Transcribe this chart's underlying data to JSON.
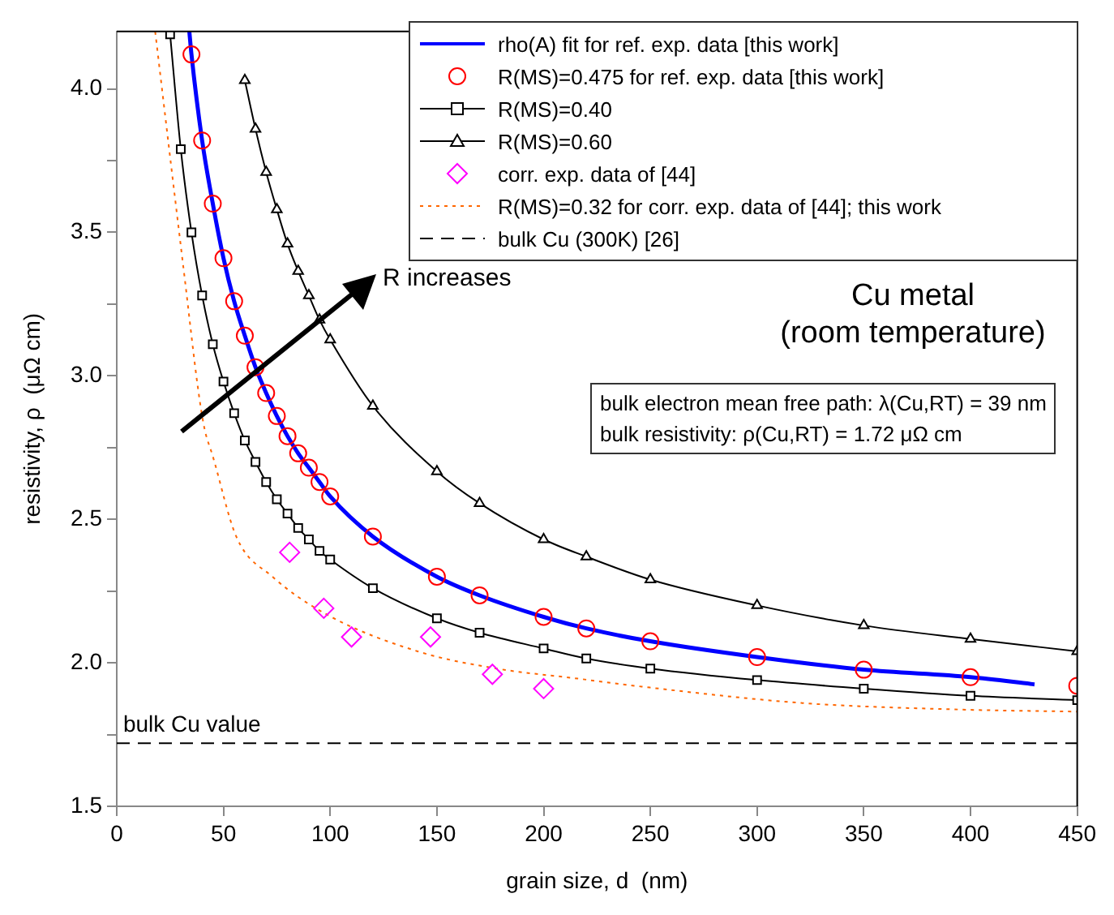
{
  "chart_data": {
    "type": "line",
    "xlabel": "grain size, d  (nm)",
    "ylabel": "resistivity, ρ  (μΩ cm)",
    "xlim": [
      0,
      450
    ],
    "xticks": [
      0,
      50,
      100,
      150,
      200,
      250,
      300,
      350,
      400,
      450
    ],
    "ylim": [
      1.5,
      4.2
    ],
    "yticks": [
      {
        "value": 1.5,
        "label": "1.5"
      },
      {
        "value": 1.75,
        "label": null
      },
      {
        "value": 2,
        "label": "2.0"
      },
      {
        "value": 2.25,
        "label": null
      },
      {
        "value": 2.5,
        "label": "2.5"
      },
      {
        "value": 2.75,
        "label": null
      },
      {
        "value": 3,
        "label": "3.0"
      },
      {
        "value": 3.25,
        "label": null
      },
      {
        "value": 3.5,
        "label": "3.5"
      },
      {
        "value": 3.75,
        "label": null
      },
      {
        "value": 4,
        "label": "4.0"
      }
    ],
    "grid": false,
    "legend": "top right",
    "series": [
      {
        "name": "rho(A) fit for ref. exp. data [this work]",
        "type": "line",
        "color": "#0000ff",
        "marker": "none",
        "line_style": "solid",
        "x": [
          34,
          35,
          40,
          45,
          50,
          55,
          60,
          65,
          70,
          75,
          80,
          85,
          90,
          95,
          100,
          120,
          150,
          170,
          200,
          220,
          250,
          300,
          350,
          400,
          430
        ],
        "values": [
          4.2,
          4.12,
          3.82,
          3.6,
          3.41,
          3.26,
          3.14,
          3.03,
          2.94,
          2.86,
          2.79,
          2.73,
          2.68,
          2.63,
          2.58,
          2.44,
          2.3,
          2.235,
          2.16,
          2.12,
          2.075,
          2.02,
          1.976,
          1.95,
          1.925
        ]
      },
      {
        "name": "R(MS)=0.475 for ref. exp. data [this work]",
        "type": "scatter",
        "color": "#ff0000",
        "marker": "circle",
        "x": [
          35,
          40,
          45,
          50,
          55,
          60,
          65,
          70,
          75,
          80,
          85,
          90,
          95,
          100,
          120,
          150,
          170,
          200,
          220,
          250,
          300,
          350,
          400,
          450
        ],
        "values": [
          4.12,
          3.82,
          3.6,
          3.41,
          3.26,
          3.14,
          3.03,
          2.94,
          2.86,
          2.79,
          2.73,
          2.68,
          2.63,
          2.58,
          2.44,
          2.3,
          2.235,
          2.16,
          2.12,
          2.075,
          2.02,
          1.976,
          1.95,
          1.92
        ]
      },
      {
        "name": "R(MS)=0.40",
        "type": "line",
        "color": "#000000",
        "marker": "square",
        "line_style": "solid",
        "x": [
          25,
          30,
          35,
          40,
          45,
          50,
          55,
          60,
          65,
          70,
          75,
          80,
          85,
          90,
          95,
          100,
          120,
          150,
          170,
          200,
          220,
          250,
          300,
          350,
          400,
          450
        ],
        "values": [
          4.19,
          3.79,
          3.5,
          3.28,
          3.11,
          2.98,
          2.87,
          2.775,
          2.7,
          2.63,
          2.57,
          2.52,
          2.47,
          2.43,
          2.39,
          2.36,
          2.26,
          2.155,
          2.105,
          2.05,
          2.015,
          1.98,
          1.94,
          1.91,
          1.885,
          1.87
        ]
      },
      {
        "name": "R(MS)=0.60",
        "type": "line",
        "color": "#000000",
        "marker": "triangle",
        "line_style": "solid",
        "x": [
          60,
          65,
          70,
          75,
          80,
          85,
          90,
          95,
          100,
          120,
          150,
          170,
          200,
          220,
          250,
          300,
          350,
          400,
          450
        ],
        "values": [
          4.03,
          3.86,
          3.71,
          3.58,
          3.46,
          3.365,
          3.28,
          3.195,
          3.126,
          2.895,
          2.667,
          2.556,
          2.43,
          2.37,
          2.29,
          2.2,
          2.13,
          2.083,
          2.04
        ]
      },
      {
        "name": "corr. exp. data of [44]",
        "type": "scatter",
        "color": "#ff00ff",
        "marker": "diamond",
        "x": [
          81,
          97,
          110,
          147,
          176,
          200
        ],
        "values": [
          2.385,
          2.19,
          2.09,
          2.09,
          1.96,
          1.91
        ]
      },
      {
        "name": "R(MS)=0.32 for corr. exp. data of [44]; this work",
        "type": "line",
        "color": "#ff6600",
        "marker": "none",
        "line_style": "dotted",
        "x": [
          18,
          26,
          32,
          38,
          41,
          45,
          56,
          73,
          98,
          141,
          178,
          216,
          246,
          321,
          396,
          450
        ],
        "values": [
          4.2,
          3.7,
          3.33,
          2.96,
          2.82,
          2.72,
          2.44,
          2.3,
          2.17,
          2.04,
          1.98,
          1.945,
          1.917,
          1.86,
          1.837,
          1.83
        ]
      },
      {
        "name": "bulk Cu (300K) [26]",
        "type": "line",
        "color": "#000000",
        "marker": "none",
        "line_style": "dashed",
        "x": [
          0,
          450
        ],
        "values": [
          1.72,
          1.72
        ]
      }
    ],
    "annotations": [
      "R increases",
      "Cu metal",
      "(room temperature)",
      "bulk electron mean free path: λ(Cu,RT) = 39 nm",
      "bulk resistivity: ρ(Cu,RT) = 1.72 μΩ cm",
      {
        "text": "bulk Cu value",
        "x": 3,
        "y": 1.72
      }
    ]
  }
}
